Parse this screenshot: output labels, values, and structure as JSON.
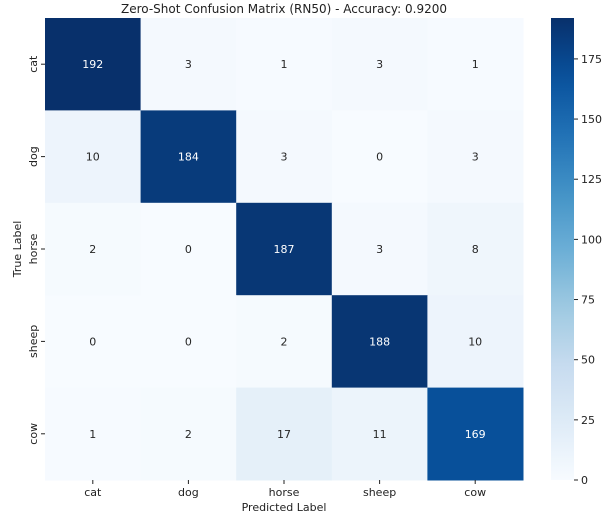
{
  "chart_data": {
    "type": "heatmap",
    "title": "Zero-Shot Confusion Matrix (RN50) - Accuracy: 0.9200",
    "xlabel": "Predicted Label",
    "ylabel": "True Label",
    "x_categories": [
      "cat",
      "dog",
      "horse",
      "sheep",
      "cow"
    ],
    "y_categories": [
      "cat",
      "dog",
      "horse",
      "sheep",
      "cow"
    ],
    "values": [
      [
        192,
        3,
        1,
        3,
        1
      ],
      [
        10,
        184,
        3,
        0,
        3
      ],
      [
        2,
        0,
        187,
        3,
        8
      ],
      [
        0,
        0,
        2,
        188,
        10
      ],
      [
        1,
        2,
        17,
        11,
        169
      ]
    ],
    "colormap": "Blues",
    "colorbar": {
      "range": [
        0,
        192
      ],
      "ticks": [
        0,
        25,
        50,
        75,
        100,
        125,
        150,
        175
      ]
    }
  }
}
